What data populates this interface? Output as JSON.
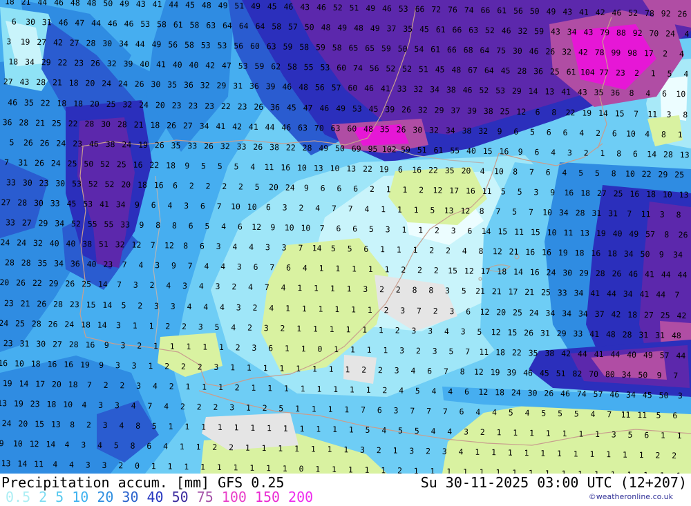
{
  "caption": {
    "title": "Precipitation accum. [mm] GFS 0.25",
    "datetime": "Su 30-11-2025 03:00 UTC (12+207)",
    "copyright": "©weatheronline.co.uk"
  },
  "legend": {
    "values": [
      "0.5",
      "2",
      "5",
      "10",
      "20",
      "30",
      "40",
      "50",
      "75",
      "100",
      "150",
      "200"
    ],
    "colors": [
      "#aceef4",
      "#7edcf2",
      "#55c8ee",
      "#3fb2f0",
      "#2e8ee0",
      "#2a62cc",
      "#2637c0",
      "#3b2a9e",
      "#a452a8",
      "#e83ec8",
      "#ea2ad2",
      "#ee2cee"
    ]
  },
  "map": {
    "units": "mm",
    "field_palette": {
      "trace_green": "#d9f2a1",
      "zero_gray": "#e5e5e5",
      "white": "#ecfdff",
      "p05": "#c9f4fb",
      "p2": "#9fe6f8",
      "p5": "#6ecdf5",
      "p10": "#46aef0",
      "p20": "#2f8ce2",
      "p30": "#2a5cd0",
      "p40": "#2b2fbc",
      "p50": "#5c28ac",
      "p75": "#b04da4",
      "p100": "#e617d6",
      "coastline": "#c89e8e",
      "border": "#b4b4b4"
    },
    "grid_rows": [
      "18 21 44 46 48 48 50 49 43 41 44 45 48 49 51 49 45 46 43 46 52 51 49 46 53 66 72 76 74 66 61 56 50 49 43 41 42 46 52 78 92 26",
      "6 30 31 46 47 44 46 46 53 58 61 58 63 64 64 64 58 57 50 48 49 48 49 37 35 45 61 66 63 52 46 32 59 43 34 43 79 88 92 70 24 4",
      "3 19 27 42 27 28 30 34 44 49 56 58 53 53 56 60 63 59 58 59 58 65 65 59 50 54 61 66 68 64 75 30 46 26 32 42 78 99 98 17 2 4",
      "18 34 29 22 23 26 32 39 40 41 40 40 42 47 53 59 62 58 55 53 60 74 56 52 52 51 45 48 67 64 45 28 36 25 61 104 77 23 2 1 5 4",
      "27 43 28 21 18 20 24 24 26 30 35 36 32 29 31 36 39 46 48 56 57 60 46 41 33 32 34 38 46 52 53 29 14 13 41 43 35 36 8 4 6 10",
      "46 35 22 18 18 20 25 32 24 20 23 23 23 22 23 26 36 45 47 46 49 53 45 39 26 32 29 37 39 38 25 12 6 8 22 19 14 15 7 11 3 8",
      "36 28 21 25 22 28 30 28 21 18 26 27 34 41 42 41 44 46 63 70 63 60 48 35 26 30 32 34 38 32 9 6 5 6 6 4 2 6 10 4 8 1",
      "5 26 26 24 23 46 38 24 19 26 35 33 26 32 33 26 38 22 28 49 50 69 95 102 59 51 61 55 40 15 16 9 6 4 3 2 1 8 6 14 28 13",
      "7 31 26 24 25 50 52 25 16 22 18 9 5 5 5 4 11 16 10 13 10 13 22 19 6 16 22 35 20 4 10 8 7 6 4 5 5 8 10 22 29 25",
      "33 30 23 30 53 52 52 20 18 16 6 2 2 2 2 5 20 24 9 6 6 6 2 1 1 2 12 17 16 11 5 5 3 9 16 18 27 25 16 18 10 13",
      "27 28 30 33 45 53 41 34 9 6 4 3 6 7 10 10 6 3 2 4 7 7 4 1 1 1 5 13 12 8 7 5 7 10 34 28 31 31 7 11 3 8",
      "33 27 29 34 52 55 55 33 9 8 8 6 5 4 6 12 9 10 10 7 6 6 5 3 1 1 2 3 6 14 15 11 15 10 11 13 19 40 49 57 8 26",
      "24 24 32 40 40 38 51 32 12 7 12 8 6 3 4 4 3 3 7 14 5 5 6 1 1 1 2 2 4 8 12 21 16 16 19 18 16 18 34 50 9 34",
      "28 28 35 34 36 40 23 7 4 3 9 7 4 4 3 6 7 6 4 1 1 1 1 1 2 2 2 15 12 17 18 14 16 24 30 29 28 26 46 41 44 44",
      "20 26 22 29 26 25 14 7 3 2 4 3 4 3 2 4 7 4 1 1 1 1 3 2 2 8 8 3 5 21 21 17 21 25 33 34 41 44 34 41 44 7",
      "23 21 26 28 23 15 14 5 2 3 3 4 4 4 3 2 4 1 1 1 1 1 1 2 3 7 2 3 6 12 20 25 24 34 34 34 37 42 18 27 25 42",
      "24 25 28 26 24 18 14 3 1 1 2 2 3 5 4 2 3 2 1 1 1 1 1 1 2 3 3 4 3 5 12 15 26 31 29 33 41 48 28 31 31 48",
      "23 31 30 27 28 16 9 3 2 1 1 1 1 1 2 3 6 1 1 0 1 1 1 1 3 2 3 5 7 11 18 22 35 38 42 44 41 44 40 49 57 44",
      "16 10 18 16 16 19 9 3 3 1 2 2 2 3 1 1 1 1 1 1 1 1 2 2 3 4 6 7 8 12 19 39 46 45 51 82 70 80 34 50 9 7",
      "19 14 17 20 18 7 2 2 3 4 2 1 1 1 2 1 1 1 1 1 1 1 1 2 4 5 4 4 6 12 18 24 30 26 46 74 57 46 34 45 50 3",
      "13 19 23 18 10 4 3 3 4 7 4 2 2 2 3 1 2 5 1 1 1 1 7 6 3 7 7 7 6 4 4 5 4 5 5 5 4 7 11 11 5 6",
      "24 20 15 13 8 2 3 4 8 5 1 1 1 1 1 1 1 1 1 1 1 1 5 4 5 5 4 4 3 2 1 1 1 1 1 1 1 3 5 6 1 1",
      "9 10 12 14 4 3 4 5 8 6 4 1 1 2 2 1 1 1 1 1 1 1 3 2 1 3 2 3 4 1 1 1 1 1 1 1 1 1 1 1 2 2",
      "13 14 11 4 4 3 3 2 0 1 1 1 1 1 1 1 1 1 0 1 1 1 1 1 2 1 1 1 1 1 1 1 1 1 1 1 1 1 1 1 1 1"
    ]
  }
}
